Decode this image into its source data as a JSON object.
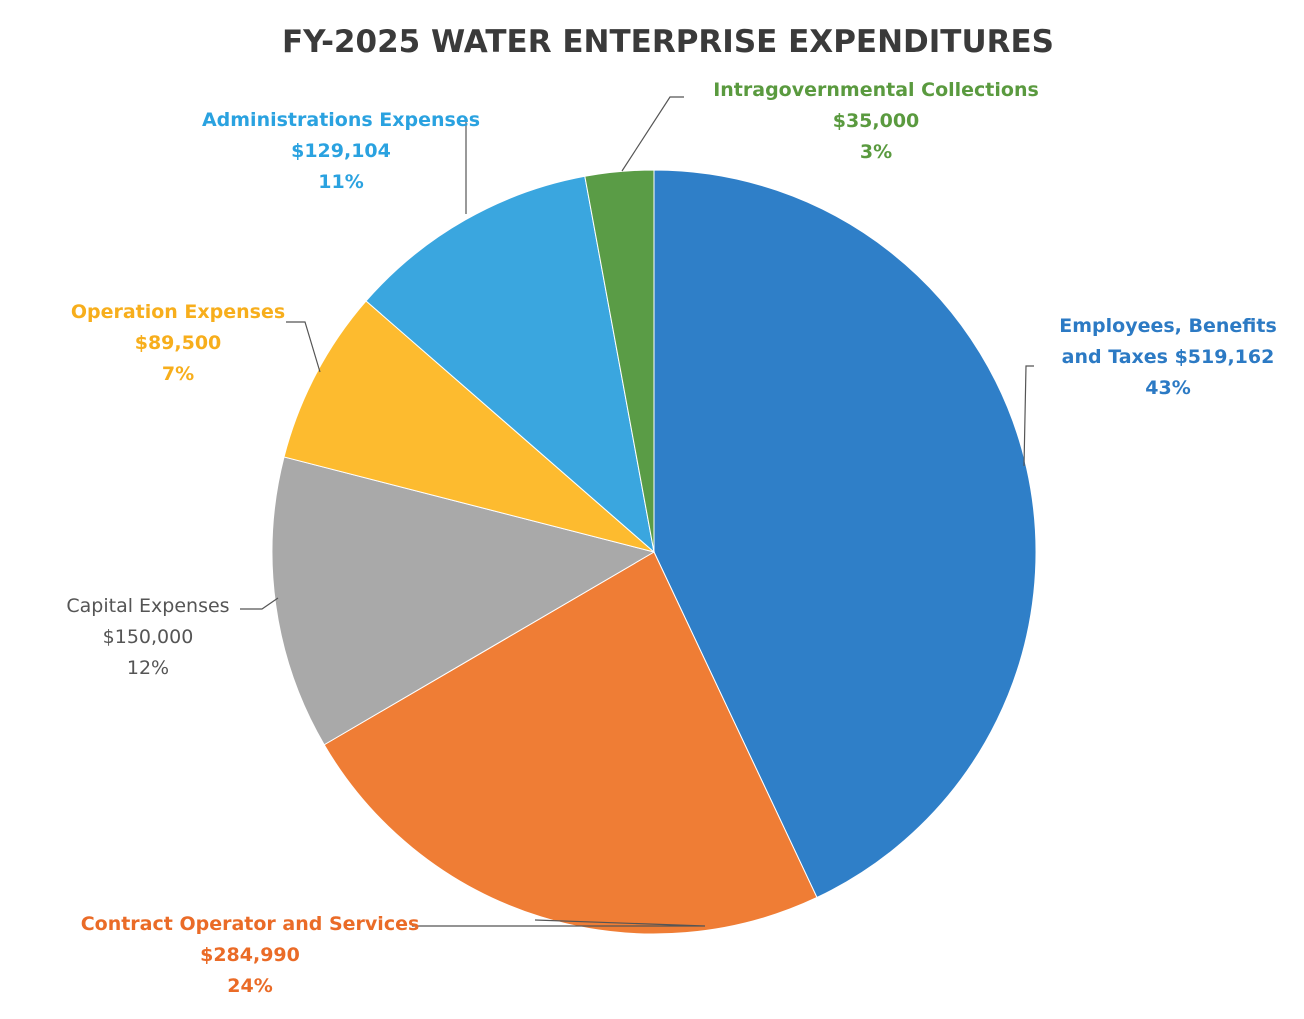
{
  "chart_data": {
    "type": "pie",
    "title": "FY-2025 WATER ENTERPRISE EXPENDITURES",
    "slices": [
      {
        "label_lines": [
          "Employees, Benefits",
          "and Taxes   $519,162"
        ],
        "value": 519162,
        "value_label": "",
        "percent_label": "43%",
        "color": "#2f7fc8",
        "text_color": "#2c7ac4"
      },
      {
        "label_lines": [
          "Contract Operator and Services"
        ],
        "value": 284990,
        "value_label": "$284,990",
        "percent_label": "24%",
        "color": "#ef7d35",
        "text_color": "#ea6b27"
      },
      {
        "label_lines": [
          "Capital Expenses"
        ],
        "value": 150000,
        "value_label": "$150,000",
        "percent_label": "12%",
        "color": "#a9a9a9",
        "text_color": "#555555"
      },
      {
        "label_lines": [
          "Operation Expenses"
        ],
        "value": 89500,
        "value_label": "$89,500",
        "percent_label": "7%",
        "color": "#fdbb2f",
        "text_color": "#f7ae1c"
      },
      {
        "label_lines": [
          "Administrations Expenses"
        ],
        "value": 129104,
        "value_label": "$129,104",
        "percent_label": "11%",
        "color": "#3aa6df",
        "text_color": "#2aa2e0"
      },
      {
        "label_lines": [
          "Intragovernmental Collections"
        ],
        "value": 35000,
        "value_label": "$35,000",
        "percent_label": "3%",
        "color": "#5a9c46",
        "text_color": "#5a9a3f"
      }
    ]
  }
}
